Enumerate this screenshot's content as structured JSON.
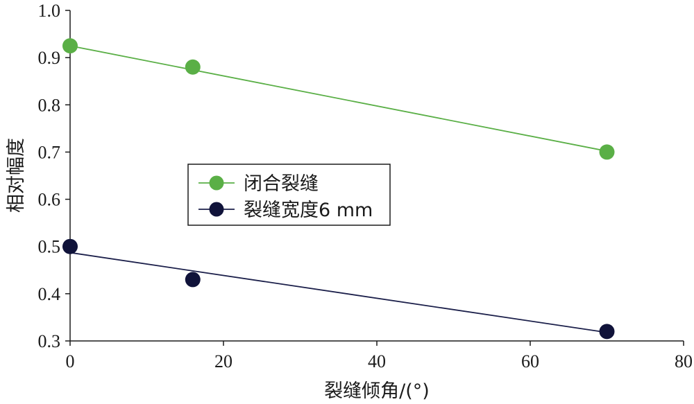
{
  "chart_data": {
    "type": "scatter",
    "xlabel": "裂缝倾角/(°)",
    "ylabel": "相对幅度",
    "xlim": [
      0,
      80
    ],
    "ylim": [
      0.3,
      1.0
    ],
    "xticks": [
      0,
      20,
      40,
      60,
      80
    ],
    "xtick_labels": [
      "0",
      "20",
      "40",
      "60",
      "80"
    ],
    "yticks": [
      0.3,
      0.4,
      0.5,
      0.6,
      0.7,
      0.8,
      0.9,
      1.0
    ],
    "ytick_labels": [
      "0.3",
      "0.4",
      "0.5",
      "0.6",
      "0.7",
      "0.8",
      "0.9",
      "1.0"
    ],
    "grid": false,
    "legend_position": "center-left",
    "series": [
      {
        "name": "闭合裂缝",
        "color": "#5aaf46",
        "marker_color": "#5aaf46",
        "x": [
          0,
          16,
          70
        ],
        "y": [
          0.925,
          0.88,
          0.7
        ],
        "trend_line": [
          [
            0,
            0.925
          ],
          [
            70,
            0.702
          ]
        ]
      },
      {
        "name": "裂缝宽度6 mm",
        "color": "#1b1f4a",
        "marker_color": "#10133a",
        "x": [
          0,
          16,
          70
        ],
        "y": [
          0.5,
          0.43,
          0.32
        ],
        "trend_line": [
          [
            0,
            0.487
          ],
          [
            70,
            0.318
          ]
        ]
      }
    ]
  }
}
